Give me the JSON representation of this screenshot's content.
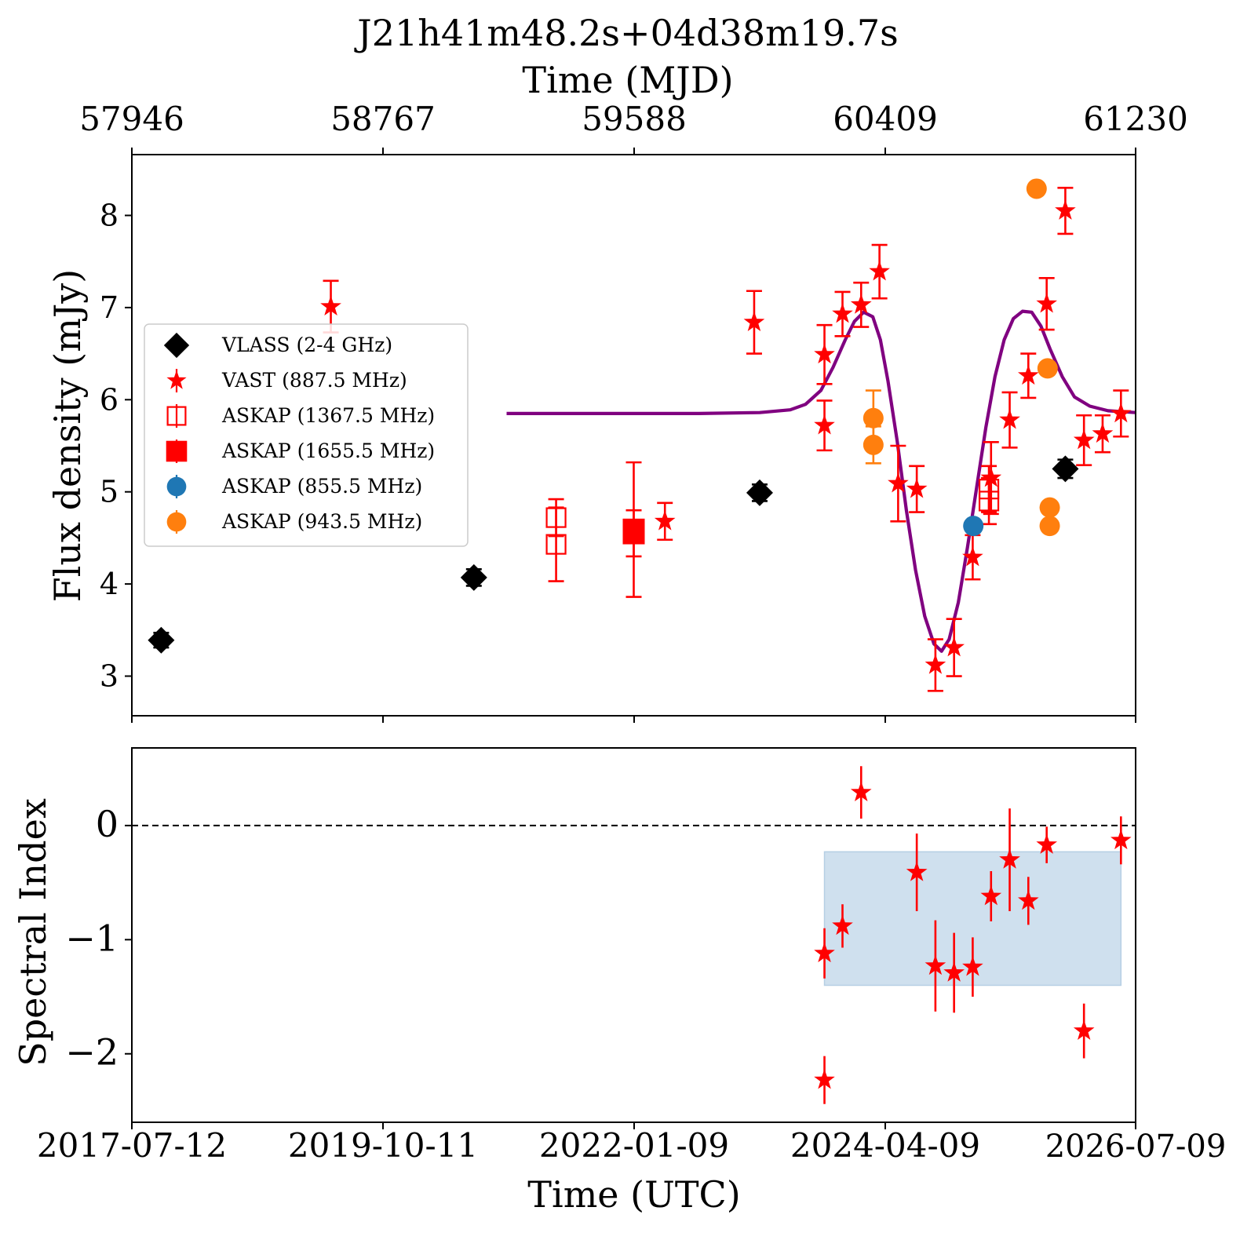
{
  "title": "J21h41m48.2s+04d38m19.7s",
  "top_axis": {
    "label": "Time (MJD)",
    "ticks": [
      "57946",
      "58767",
      "59588",
      "60409",
      "61230"
    ]
  },
  "bottom_axis": {
    "label": "Time (UTC)",
    "ticks": [
      "2017-07-12",
      "2019-10-11",
      "2022-01-09",
      "2024-04-09",
      "2026-07-09"
    ]
  },
  "chart_data": [
    {
      "type": "scatter",
      "panel": "top",
      "ylabel": "Flux density (mJy)",
      "x_unit": "MJD",
      "xlim": [
        57946,
        61230
      ],
      "ylim": [
        2.57,
        8.66
      ],
      "y_ticks": [
        3,
        4,
        5,
        6,
        7,
        8
      ],
      "legend_position": "center-left",
      "series": [
        {
          "name": "VLASS (2-4 GHz)",
          "marker": "diamond",
          "color": "#000000",
          "points": [
            [
              58042,
              3.39,
              0.08
            ],
            [
              59065,
              4.07,
              0.09
            ],
            [
              60000,
              4.99,
              0.09
            ],
            [
              61000,
              5.25,
              0.1
            ]
          ]
        },
        {
          "name": "VAST (887.5 MHz)",
          "marker": "star",
          "color": "#ff0000",
          "points": [
            [
              58597,
              7.01,
              0.28
            ],
            [
              59690,
              4.68,
              0.2
            ],
            [
              59982,
              6.84,
              0.34
            ],
            [
              60212,
              6.49,
              0.32
            ],
            [
              60212,
              5.72,
              0.27
            ],
            [
              60271,
              6.93,
              0.24
            ],
            [
              60332,
              7.03,
              0.24
            ],
            [
              60392,
              7.39,
              0.29
            ],
            [
              60453,
              5.09,
              0.41
            ],
            [
              60514,
              5.03,
              0.25
            ],
            [
              60575,
              3.12,
              0.28
            ],
            [
              60636,
              3.31,
              0.31
            ],
            [
              60697,
              4.29,
              0.24
            ],
            [
              60757,
              5.15,
              0.39
            ],
            [
              60818,
              5.78,
              0.3
            ],
            [
              60879,
              6.26,
              0.24
            ],
            [
              60939,
              7.04,
              0.28
            ],
            [
              61000,
              8.05,
              0.25
            ],
            [
              61061,
              5.56,
              0.27
            ],
            [
              61122,
              5.63,
              0.2
            ],
            [
              61182,
              5.85,
              0.25
            ]
          ]
        },
        {
          "name": "ASKAP (1367.5 MHz)",
          "marker": "open-square",
          "color": "#ff0000",
          "points": [
            [
              59334,
              4.72,
              0.2
            ],
            [
              59334,
              4.43,
              0.4
            ],
            [
              60750,
              4.9,
              0.25
            ],
            [
              60750,
              5.03,
              0.25
            ]
          ]
        },
        {
          "name": "ASKAP (1655.5 MHz)",
          "marker": "square",
          "color": "#ff0000",
          "points": [
            [
              59588,
              4.59,
              0.73
            ],
            [
              59588,
              4.55,
              0.25
            ]
          ]
        },
        {
          "name": "ASKAP (855.5 MHz)",
          "marker": "circle",
          "color": "#1f77b4",
          "points": [
            [
              60699,
              4.63,
              0.06
            ]
          ]
        },
        {
          "name": "ASKAP (943.5 MHz)",
          "marker": "circle",
          "color": "#ff7f0e",
          "points": [
            [
              60372,
              5.8,
              0.3
            ],
            [
              60372,
              5.51,
              0.2
            ],
            [
              60906,
              8.29,
              0.05
            ],
            [
              60942,
              6.34,
              0.05
            ],
            [
              60949,
              4.83,
              0.05
            ],
            [
              60949,
              4.63,
              0.05
            ]
          ]
        }
      ],
      "model_curve": {
        "color": "#800080",
        "points": [
          [
            59172,
            5.85
          ],
          [
            59400,
            5.85
          ],
          [
            59600,
            5.85
          ],
          [
            59800,
            5.85
          ],
          [
            60000,
            5.86
          ],
          [
            60100,
            5.89
          ],
          [
            60150,
            5.95
          ],
          [
            60200,
            6.1
          ],
          [
            60240,
            6.35
          ],
          [
            60280,
            6.65
          ],
          [
            60310,
            6.85
          ],
          [
            60340,
            6.95
          ],
          [
            60370,
            6.9
          ],
          [
            60395,
            6.65
          ],
          [
            60420,
            6.2
          ],
          [
            60450,
            5.55
          ],
          [
            60480,
            4.8
          ],
          [
            60510,
            4.15
          ],
          [
            60540,
            3.65
          ],
          [
            60570,
            3.35
          ],
          [
            60595,
            3.27
          ],
          [
            60620,
            3.4
          ],
          [
            60650,
            3.8
          ],
          [
            60680,
            4.4
          ],
          [
            60710,
            5.05
          ],
          [
            60740,
            5.7
          ],
          [
            60770,
            6.25
          ],
          [
            60800,
            6.65
          ],
          [
            60830,
            6.88
          ],
          [
            60860,
            6.96
          ],
          [
            60890,
            6.95
          ],
          [
            60920,
            6.8
          ],
          [
            60950,
            6.55
          ],
          [
            60990,
            6.25
          ],
          [
            61030,
            6.03
          ],
          [
            61080,
            5.93
          ],
          [
            61140,
            5.88
          ],
          [
            61230,
            5.86
          ]
        ]
      }
    },
    {
      "type": "scatter",
      "panel": "bottom",
      "ylabel": "Spectral Index",
      "x_unit": "MJD",
      "xlim": [
        57946,
        61230
      ],
      "ylim": [
        -2.6,
        0.68
      ],
      "y_ticks": [
        0,
        -1,
        -2
      ],
      "y_tick_labels": [
        "0",
        "−1",
        "−2"
      ],
      "reference_line": {
        "y": 0,
        "style": "dashed",
        "color": "#000000"
      },
      "shaded_band": {
        "x": [
          60212,
          61182
        ],
        "y": [
          -1.4,
          -0.23
        ],
        "color": "#cfe0ee"
      },
      "series": [
        {
          "name": "",
          "marker": "star",
          "color": "#ff0000",
          "points": [
            [
              60212,
              -1.12,
              0.22
            ],
            [
              60212,
              -2.23,
              0.21
            ],
            [
              60271,
              -0.88,
              0.19
            ],
            [
              60332,
              0.29,
              0.23
            ],
            [
              60514,
              -0.41,
              0.34
            ],
            [
              60575,
              -1.23,
              0.4
            ],
            [
              60636,
              -1.29,
              0.35
            ],
            [
              60697,
              -1.24,
              0.26
            ],
            [
              60757,
              -0.62,
              0.22
            ],
            [
              60818,
              -0.3,
              0.45
            ],
            [
              60879,
              -0.66,
              0.21
            ],
            [
              60939,
              -0.17,
              0.16
            ],
            [
              61061,
              -1.8,
              0.24
            ],
            [
              61182,
              -0.13,
              0.21
            ]
          ]
        }
      ]
    }
  ]
}
